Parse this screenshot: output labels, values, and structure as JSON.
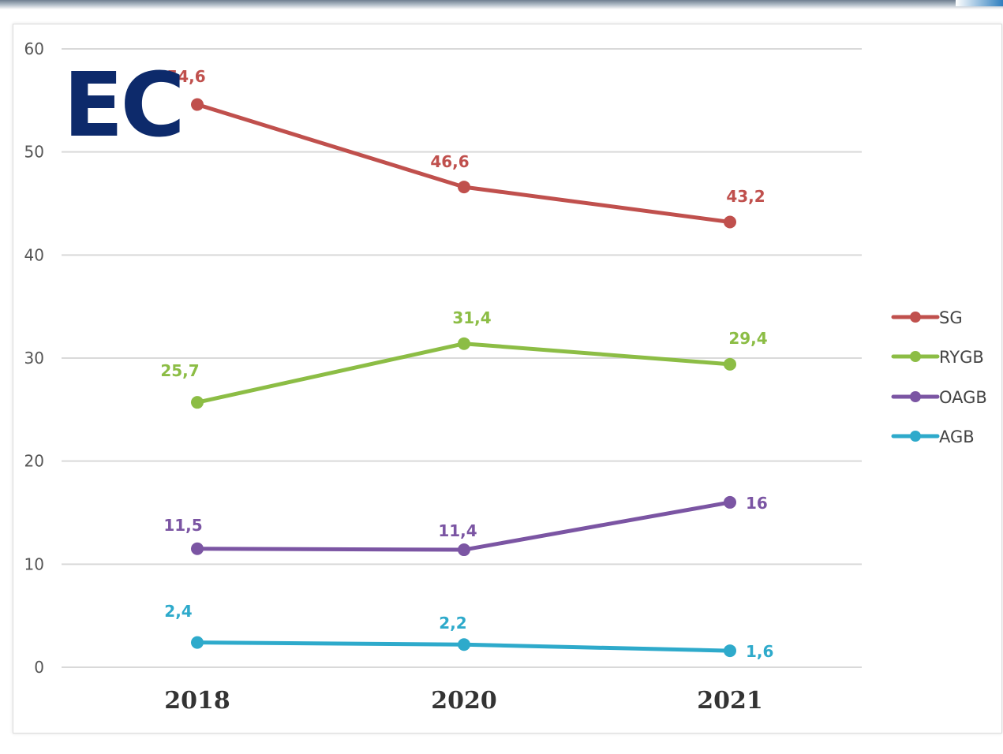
{
  "logo_text": "EC",
  "chart_data": {
    "type": "line",
    "categories": [
      "2018",
      "2020",
      "2021"
    ],
    "yticks": [
      "0",
      "10",
      "20",
      "30",
      "40",
      "50",
      "60"
    ],
    "ylim": [
      0,
      60
    ],
    "grid": true,
    "legend_position": "right",
    "series": [
      {
        "name": "SG",
        "color": "#c0504d",
        "values": [
          54.6,
          46.6,
          43.2
        ],
        "labels": [
          "54,6",
          "46,6",
          "43,2"
        ]
      },
      {
        "name": "RYGB",
        "color": "#8cbd45",
        "values": [
          25.7,
          31.4,
          29.4
        ],
        "labels": [
          "25,7",
          "31,4",
          "29,4"
        ]
      },
      {
        "name": "OAGB",
        "color": "#7b55a3",
        "values": [
          11.5,
          11.4,
          16
        ],
        "labels": [
          "11,5",
          "11,4",
          "16"
        ]
      },
      {
        "name": "AGB",
        "color": "#2eaacb",
        "values": [
          2.4,
          2.2,
          1.6
        ],
        "labels": [
          "2,4",
          "2,2",
          "1,6"
        ]
      }
    ]
  }
}
